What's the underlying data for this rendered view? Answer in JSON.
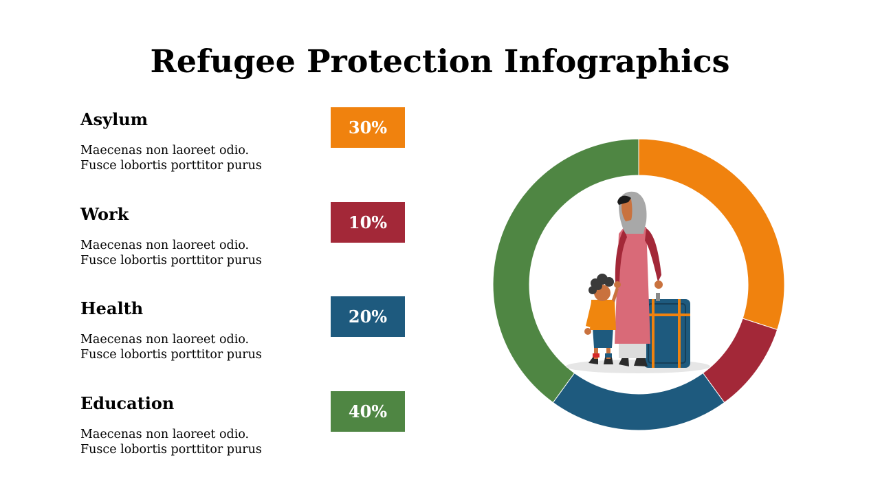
{
  "title": "Refugee Protection Infographics",
  "colors": {
    "asylum": "#F0820E",
    "work": "#A32838",
    "health": "#1E5A7E",
    "education": "#4F8643"
  },
  "items": [
    {
      "heading": "Asylum",
      "desc_line1": "Maecenas non laoreet odio.",
      "desc_line2": "Fusce lobortis porttitor purus",
      "percent": "30%",
      "color": "#F0820E"
    },
    {
      "heading": "Work",
      "desc_line1": "Maecenas non laoreet odio.",
      "desc_line2": "Fusce lobortis porttitor purus",
      "percent": "10%",
      "color": "#A32838"
    },
    {
      "heading": "Health",
      "desc_line1": "Maecenas non laoreet odio.",
      "desc_line2": "Fusce lobortis porttitor purus",
      "percent": "20%",
      "color": "#1E5A7E"
    },
    {
      "heading": "Education",
      "desc_line1": "Maecenas non laoreet odio.",
      "desc_line2": "Fusce lobortis porttitor purus",
      "percent": "40%",
      "color": "#4F8643"
    }
  ],
  "chart_data": {
    "type": "pie",
    "variant": "donut",
    "categories": [
      "Asylum",
      "Work",
      "Health",
      "Education"
    ],
    "values": [
      30,
      10,
      20,
      40
    ],
    "colors": [
      "#F0820E",
      "#A32838",
      "#1E5A7E",
      "#4F8643"
    ],
    "start": "top",
    "direction": "clockwise",
    "center_icon": "refugee-family-illustration"
  }
}
